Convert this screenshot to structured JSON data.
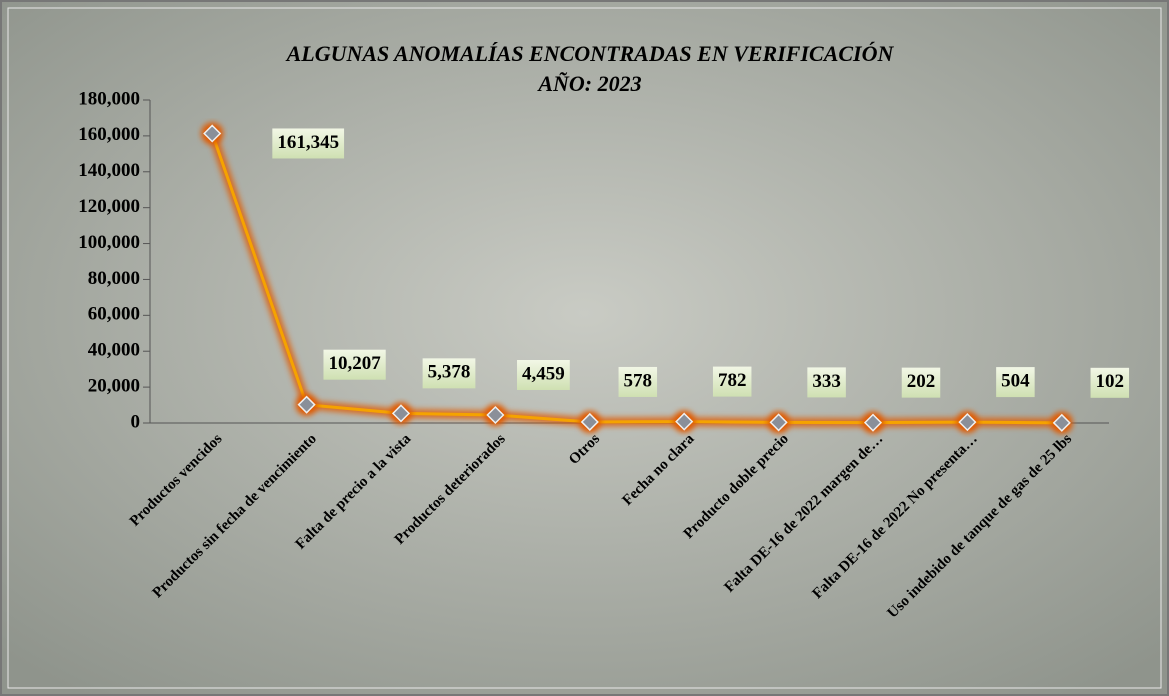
{
  "chart_data": {
    "type": "line",
    "title": "ALGUNAS ANOMALÍAS ENCONTRADAS EN VERIFICACIÓN",
    "subtitle": "AÑO: 2023",
    "categories": [
      "Productos vencidos",
      "Productos sin fecha de vencimiento",
      "Falta de precio a la vista",
      "Productos deteriorados",
      "Otros",
      "Fecha no clara",
      "Producto doble precio",
      "Falta DE-16 de 2022 margen de…",
      "Falta DE-16 de 2022 No presenta…",
      "Uso indebido de tanque de gas de 25 lbs"
    ],
    "values": [
      161345,
      10207,
      5378,
      4459,
      578,
      782,
      333,
      202,
      504,
      102
    ],
    "value_labels": [
      "161,345",
      "10,207",
      "5,378",
      "4,459",
      "578",
      "782",
      "333",
      "202",
      "504",
      "102"
    ],
    "color": "#f5a300",
    "ylim": [
      0,
      180000
    ],
    "yticks": [
      0,
      {
        "value": 20000,
        "label": "20,000"
      },
      {
        "value": 40000,
        "label": "40,000"
      },
      {
        "value": 60000,
        "label": "60,000"
      },
      {
        "value": 80000,
        "label": "80,000"
      },
      {
        "value": 100000,
        "label": "100,000"
      },
      {
        "value": 120000,
        "label": "120,000"
      },
      {
        "value": 140000,
        "label": "140,000"
      },
      {
        "value": 160000,
        "label": "160,000"
      },
      {
        "value": 180000,
        "label": "180,000"
      }
    ]
  }
}
